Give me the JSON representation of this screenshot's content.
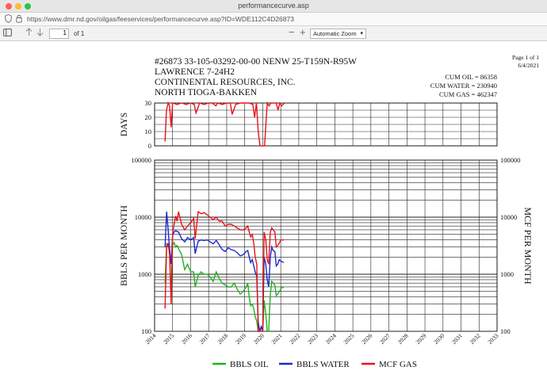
{
  "window": {
    "title": "performancecurve.asp"
  },
  "address_bar": {
    "url": "https://www.dmr.nd.gov/oilgas/feeservices/performancecurve.asp?ID=WDE112C4D26873",
    "shield_icon": "shield-icon",
    "lock_icon": "lock-icon"
  },
  "pdf_toolbar": {
    "sidebar_icon": "sidebar-toggle-icon",
    "page_number": "1",
    "page_count": "of 1",
    "zoom_out": "−",
    "zoom_in": "+",
    "zoom_level": "Automatic Zoom"
  },
  "document": {
    "page_label": "Page 1 of 1",
    "date": "6/4/2021",
    "header_line1": "#26873   33-105-03292-00-00   NENW 25-T159N-R95W",
    "header_line2": "LAWRENCE  7-24H2",
    "header_line3": "CONTINENTAL RESOURCES, INC.",
    "header_line4": "NORTH TIOGA-BAKKEN",
    "cum_oil": "CUM OIL = 86358",
    "cum_water": "CUM WATER = 230940",
    "cum_gas": "CUM GAS = 462347"
  },
  "chart_data": [
    {
      "type": "line",
      "ylabel": "DAYS",
      "ylim": [
        0,
        30
      ],
      "yticks": [
        "30",
        "20",
        "10",
        "0"
      ],
      "xlim": [
        2014,
        2033
      ],
      "grid": true,
      "series": [
        {
          "color": "#e8121b",
          "x": [
            2014.58,
            2014.66,
            2014.75,
            2014.83,
            2014.92,
            2015.0,
            2015.25,
            2015.5,
            2015.75,
            2016.0,
            2016.2,
            2016.3,
            2016.5,
            2016.75,
            2017.0,
            2017.2,
            2017.4,
            2017.5,
            2017.75,
            2018.0,
            2018.2,
            2018.3,
            2018.5,
            2018.75,
            2019.0,
            2019.25,
            2019.45,
            2019.55,
            2019.65,
            2019.75,
            2019.85,
            2019.95,
            2020.1,
            2020.25,
            2020.35,
            2020.45,
            2020.6,
            2020.75,
            2020.85,
            2020.95,
            2021.05,
            2021.2
          ],
          "y": [
            3,
            25,
            30,
            28,
            13,
            30,
            29,
            30,
            29,
            30,
            29,
            23,
            30,
            29,
            30,
            30,
            28,
            30,
            29,
            30,
            30,
            22,
            29,
            30,
            30,
            30,
            29,
            20,
            30,
            10,
            0,
            0,
            0,
            30,
            28,
            30,
            30,
            30,
            25,
            30,
            28,
            30
          ]
        }
      ]
    },
    {
      "type": "line",
      "ylabel": "BBLS PER MONTH",
      "y2label": "MCF PER MONTH",
      "yscale": "log",
      "ylim": [
        100,
        100000
      ],
      "yticks": [
        "100000",
        "10000",
        "1000",
        "100"
      ],
      "categories": [
        "2014",
        "2015",
        "2016",
        "2017",
        "2018",
        "2019",
        "2020",
        "2021",
        "2022",
        "2023",
        "2024",
        "2025",
        "2026",
        "2027",
        "2028",
        "2029",
        "2030",
        "2031",
        "2032",
        "2033"
      ],
      "xlim": [
        2014,
        2033
      ],
      "grid": true,
      "legend_position": "bottom",
      "series": [
        {
          "name": "BBLS OIL",
          "color": "#21b21e",
          "x": [
            2014.58,
            2014.67,
            2014.75,
            2014.83,
            2014.92,
            2015.0,
            2015.08,
            2015.17,
            2015.25,
            2015.33,
            2015.5,
            2015.67,
            2015.83,
            2016.0,
            2016.17,
            2016.25,
            2016.42,
            2016.58,
            2016.75,
            2016.92,
            2017.08,
            2017.25,
            2017.42,
            2017.58,
            2017.75,
            2017.92,
            2018.08,
            2018.25,
            2018.42,
            2018.58,
            2018.75,
            2018.92,
            2019.08,
            2019.17,
            2019.25,
            2019.33,
            2019.42,
            2019.5,
            2019.58,
            2019.67,
            2019.75,
            2019.83,
            2019.92,
            2020.0,
            2020.08,
            2020.17,
            2020.25,
            2020.33,
            2020.42,
            2020.5,
            2020.58,
            2020.67,
            2020.75,
            2020.83,
            2020.92,
            2021.0,
            2021.08,
            2021.17
          ],
          "y": [
            700,
            3500,
            3000,
            2800,
            400,
            3200,
            3600,
            3000,
            3200,
            2800,
            2200,
            1200,
            1500,
            1100,
            1100,
            600,
            950,
            1100,
            1000,
            1000,
            900,
            750,
            1100,
            850,
            700,
            650,
            600,
            600,
            700,
            550,
            450,
            500,
            600,
            700,
            400,
            280,
            300,
            250,
            180,
            150,
            100,
            100,
            120,
            100,
            350,
            200,
            100,
            100,
            450,
            750,
            700,
            650,
            420,
            450,
            500,
            550,
            600,
            580
          ]
        },
        {
          "name": "BBLS WATER",
          "color": "#1c28c9",
          "x": [
            2014.58,
            2014.67,
            2014.75,
            2014.83,
            2014.92,
            2015.0,
            2015.08,
            2015.17,
            2015.25,
            2015.33,
            2015.5,
            2015.67,
            2015.83,
            2016.0,
            2016.17,
            2016.25,
            2016.42,
            2016.58,
            2016.75,
            2016.92,
            2017.08,
            2017.25,
            2017.42,
            2017.58,
            2017.75,
            2017.92,
            2018.08,
            2018.25,
            2018.42,
            2018.58,
            2018.75,
            2018.92,
            2019.08,
            2019.17,
            2019.25,
            2019.33,
            2019.42,
            2019.5,
            2019.58,
            2019.67,
            2019.75,
            2019.83,
            2019.92,
            2020.0,
            2020.08,
            2020.17,
            2020.25,
            2020.33,
            2020.42,
            2020.5,
            2020.58,
            2020.67,
            2020.75,
            2020.83,
            2020.92,
            2021.0,
            2021.08,
            2021.17
          ],
          "y": [
            3000,
            12500,
            6000,
            2800,
            1500,
            4800,
            5500,
            5800,
            5600,
            5500,
            4200,
            3700,
            4400,
            4000,
            4400,
            2300,
            3800,
            4000,
            3900,
            4000,
            3700,
            3400,
            3900,
            3300,
            2700,
            2500,
            2900,
            2700,
            2600,
            2400,
            2100,
            2200,
            2500,
            2600,
            2000,
            1600,
            1800,
            1400,
            1100,
            900,
            150,
            100,
            120,
            100,
            2000,
            1500,
            800,
            600,
            2000,
            3000,
            2600,
            2500,
            1400,
            1500,
            1800,
            1700,
            1650,
            1600
          ]
        },
        {
          "name": "MCF GAS",
          "color": "#e8121b",
          "x": [
            2014.58,
            2014.67,
            2014.75,
            2014.83,
            2014.92,
            2015.0,
            2015.08,
            2015.17,
            2015.25,
            2015.33,
            2015.5,
            2015.67,
            2015.83,
            2016.0,
            2016.17,
            2016.25,
            2016.42,
            2016.58,
            2016.75,
            2016.92,
            2017.08,
            2017.25,
            2017.42,
            2017.58,
            2017.75,
            2017.92,
            2018.08,
            2018.25,
            2018.42,
            2018.58,
            2018.75,
            2018.92,
            2019.08,
            2019.17,
            2019.25,
            2019.33,
            2019.42,
            2019.5,
            2019.58,
            2019.67,
            2019.75,
            2019.83,
            2019.92,
            2020.0,
            2020.08,
            2020.17,
            2020.25,
            2020.33,
            2020.42,
            2020.5,
            2020.58,
            2020.67,
            2020.75,
            2020.83,
            2020.92,
            2021.0,
            2021.08,
            2021.17
          ],
          "y": [
            250,
            3000,
            3500,
            2200,
            300,
            5000,
            7500,
            10500,
            8500,
            12500,
            7500,
            6000,
            7000,
            8000,
            9500,
            4200,
            12500,
            11500,
            12000,
            11000,
            10000,
            9000,
            10000,
            8500,
            8500,
            7000,
            7500,
            7500,
            7000,
            6500,
            6000,
            6000,
            6500,
            7000,
            5500,
            4500,
            5000,
            3500,
            2000,
            1500,
            100,
            100,
            100,
            100,
            5500,
            4000,
            1800,
            1500,
            5500,
            6500,
            6000,
            5500,
            3000,
            3200,
            3500,
            4000,
            4000,
            4000
          ]
        }
      ]
    }
  ]
}
